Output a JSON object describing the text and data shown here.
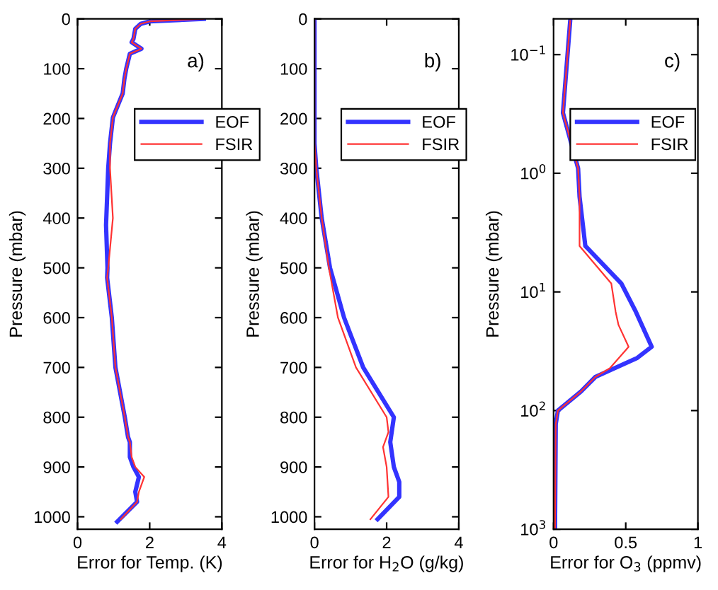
{
  "chart_data": [
    {
      "type": "line",
      "xlabel": "Error for Temp. (K)",
      "ylabel": "Pressure (mbar)",
      "annotations": [
        "a)"
      ],
      "xlim": [
        0,
        4
      ],
      "xticks": [
        0,
        2,
        4
      ],
      "ylim": [
        1025,
        0
      ],
      "yticks": [
        0,
        100,
        200,
        300,
        400,
        500,
        600,
        700,
        800,
        900,
        1000
      ],
      "legend": "top right",
      "grid": false,
      "series": [
        {
          "name": "EOF",
          "color": "#3333ff",
          "x": [
            3.5,
            2.0,
            1.75,
            1.6,
            1.55,
            1.5,
            1.77,
            1.45,
            1.35,
            1.3,
            1.25,
            0.98,
            0.9,
            0.85,
            0.79,
            0.83,
            0.82,
            0.95,
            1.05,
            1.31,
            1.4,
            1.45,
            1.45,
            1.55,
            1.7,
            1.6,
            1.65,
            1.1
          ],
          "values": [
            0,
            5,
            10,
            20,
            40,
            47,
            60,
            70,
            100,
            120,
            150,
            198,
            250,
            300,
            414,
            500,
            520,
            600,
            700,
            800,
            840,
            850,
            880,
            900,
            920,
            950,
            970,
            1010
          ]
        },
        {
          "name": "FSIR",
          "color": "#ff3333",
          "x": [
            3.5,
            2.0,
            1.75,
            1.6,
            1.55,
            1.5,
            1.77,
            1.45,
            1.35,
            1.3,
            1.25,
            0.98,
            0.9,
            0.9,
            0.98,
            0.85,
            0.82,
            0.95,
            1.05,
            1.31,
            1.4,
            1.45,
            1.5,
            1.6,
            1.85,
            1.7,
            1.65,
            1.2
          ],
          "values": [
            0,
            5,
            10,
            20,
            40,
            47,
            60,
            70,
            100,
            120,
            150,
            198,
            250,
            300,
            400,
            500,
            520,
            600,
            700,
            800,
            840,
            850,
            880,
            900,
            920,
            950,
            970,
            1005
          ]
        }
      ]
    },
    {
      "type": "line",
      "xlabel": "Error for H$_{2}$O (g/kg)",
      "ylabel": "Pressure (mbar)",
      "annotations": [
        "b)"
      ],
      "xlim": [
        0,
        4
      ],
      "xticks": [
        0,
        2,
        4
      ],
      "ylim": [
        1025,
        0
      ],
      "yticks": [
        0,
        100,
        200,
        300,
        400,
        500,
        600,
        700,
        800,
        900,
        1000
      ],
      "legend": "top right",
      "grid": false,
      "series": [
        {
          "name": "EOF",
          "color": "#3333ff",
          "x": [
            0,
            0,
            0.05,
            0.2,
            0.43,
            0.82,
            1.35,
            2.2,
            2.1,
            2.2,
            2.35,
            2.35,
            1.75
          ],
          "values": [
            0,
            250,
            300,
            400,
            500,
            600,
            700,
            800,
            850,
            900,
            930,
            960,
            1005
          ]
        },
        {
          "name": "FSIR",
          "color": "#ff3333",
          "x": [
            0,
            0,
            0.05,
            0.2,
            0.4,
            0.65,
            1.15,
            2.0,
            2.05,
            1.9,
            2.0,
            2.05,
            1.55
          ],
          "values": [
            0,
            250,
            300,
            400,
            500,
            600,
            700,
            800,
            830,
            860,
            900,
            960,
            1005
          ]
        }
      ]
    },
    {
      "type": "line",
      "xlabel": "Error for O$_{3}$ (ppmv)",
      "ylabel": "Pressure (mbar)",
      "annotations": [
        "c)"
      ],
      "log": "y",
      "xlim": [
        0,
        1
      ],
      "xticks": [
        0,
        0.5,
        1
      ],
      "ylim": [
        1000,
        0.05
      ],
      "yticks": [
        {
          "value": 0.1,
          "label": "10$^{−1}$"
        },
        {
          "value": 1,
          "label": "10$^{0}$"
        },
        {
          "value": 10,
          "label": "10$^{1}$"
        },
        {
          "value": 100,
          "label": "10$^{2}$"
        },
        {
          "value": 1000,
          "label": "10$^{3}$"
        }
      ],
      "legend": "top right",
      "grid": false,
      "series": [
        {
          "name": "EOF",
          "color": "#3333ff",
          "x": [
            0.115,
            0.065,
            0.17,
            0.18,
            0.22,
            0.47,
            0.57,
            0.68,
            0.58,
            0.29,
            0.19,
            0.03,
            0.015,
            0.01
          ],
          "values": [
            0.052,
            0.31,
            0.91,
            1.58,
            4.1,
            8.5,
            14.7,
            29,
            36,
            52,
            69,
            100,
            130,
            1000
          ]
        },
        {
          "name": "FSIR",
          "color": "#ff3333",
          "x": [
            0.115,
            0.065,
            0.17,
            0.18,
            0.18,
            0.4,
            0.43,
            0.45,
            0.52,
            0.39,
            0.29,
            0.19,
            0.03,
            0.015,
            0.01
          ],
          "values": [
            0.052,
            0.31,
            0.91,
            1.58,
            4.1,
            8.5,
            14.7,
            19,
            29,
            44,
            52,
            69,
            100,
            130,
            1000
          ]
        }
      ]
    }
  ]
}
